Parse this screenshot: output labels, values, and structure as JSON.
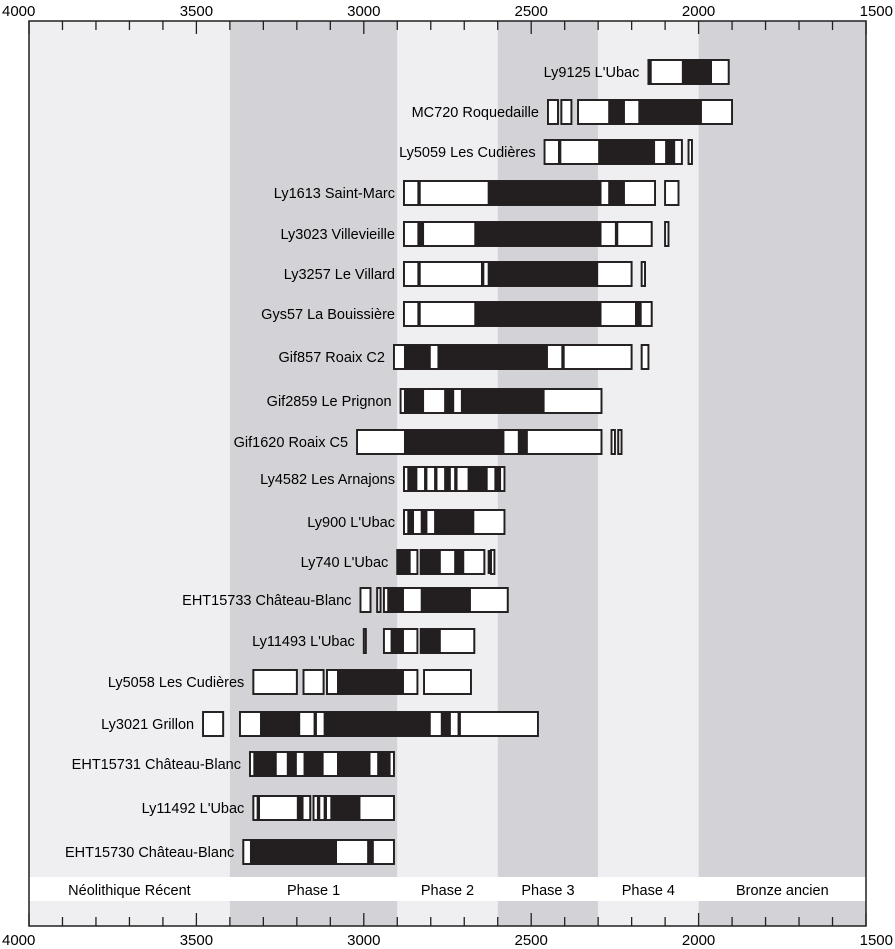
{
  "chart_data": {
    "type": "range-bar",
    "x_axis": {
      "range": [
        4000,
        1500
      ],
      "reversed": true,
      "tick_labels": [
        4000,
        3500,
        3000,
        2500,
        2000,
        1500
      ],
      "major_step": 500,
      "minor_step": 100,
      "position": "top and bottom"
    },
    "phases": [
      {
        "label": "Néolithique Récent",
        "start": 4000,
        "end": 3400,
        "color": "#efeff2"
      },
      {
        "label": "Phase 1",
        "start": 3400,
        "end": 2900,
        "color": "#d3d3d7"
      },
      {
        "label": "Phase 2",
        "start": 2900,
        "end": 2600,
        "color": "#efeff2"
      },
      {
        "label": "Phase 3",
        "start": 2600,
        "end": 2300,
        "color": "#d3d3d7"
      },
      {
        "label": "Phase 4",
        "start": 2300,
        "end": 2000,
        "color": "#efeff2"
      },
      {
        "label": "Bronze ancien",
        "start": 2000,
        "end": 1500,
        "color": "#d3d3d7"
      }
    ],
    "colors": {
      "background_light": "#efeff2",
      "background_dark": "#d3d3d7",
      "high_probability": "#231f20",
      "low_probability": "#ffffff",
      "outline": "#231f20"
    },
    "legend": "none",
    "samples": [
      {
        "label": "Ly9125 L'Ubac",
        "blocks": [
          [
            2150,
            1910
          ]
        ],
        "dark": [
          [
            2150,
            2140
          ],
          [
            2050,
            1960
          ]
        ]
      },
      {
        "label": "MC720 Roquedaille",
        "blocks": [
          [
            2450,
            2420
          ],
          [
            2410,
            2380
          ],
          [
            2360,
            1900
          ]
        ],
        "dark": [
          [
            2270,
            2220
          ],
          [
            2180,
            1990
          ]
        ]
      },
      {
        "label": "Ly5059 Les Cudières",
        "blocks": [
          [
            2460,
            2050
          ],
          [
            2030,
            2020
          ]
        ],
        "dark": [
          [
            2420,
            2410
          ],
          [
            2300,
            2130
          ],
          [
            2100,
            2070
          ]
        ]
      },
      {
        "label": "Ly1613 Saint-Marc",
        "blocks": [
          [
            2880,
            2130
          ],
          [
            2100,
            2060
          ]
        ],
        "dark": [
          [
            2840,
            2830
          ],
          [
            2630,
            2290
          ],
          [
            2270,
            2220
          ]
        ]
      },
      {
        "label": "Ly3023 Villevieille",
        "blocks": [
          [
            2880,
            2140
          ],
          [
            2100,
            2090
          ]
        ],
        "dark": [
          [
            2840,
            2820
          ],
          [
            2670,
            2290
          ],
          [
            2250,
            2240
          ]
        ]
      },
      {
        "label": "Ly3257 Le Villard",
        "blocks": [
          [
            2880,
            2200
          ],
          [
            2170,
            2160
          ]
        ],
        "dark": [
          [
            2840,
            2830
          ],
          [
            2650,
            2640
          ],
          [
            2630,
            2300
          ]
        ]
      },
      {
        "label": "Gys57 La Bouissière",
        "blocks": [
          [
            2880,
            2140
          ]
        ],
        "dark": [
          [
            2840,
            2830
          ],
          [
            2670,
            2290
          ],
          [
            2190,
            2170
          ]
        ]
      },
      {
        "label": "Gif857 Roaix C2",
        "blocks": [
          [
            2910,
            2200
          ],
          [
            2170,
            2150
          ]
        ],
        "dark": [
          [
            2880,
            2800
          ],
          [
            2780,
            2450
          ],
          [
            2410,
            2400
          ]
        ]
      },
      {
        "label": "Gif2859 Le Prignon",
        "blocks": [
          [
            2890,
            2290
          ]
        ],
        "dark": [
          [
            2880,
            2820
          ],
          [
            2760,
            2730
          ],
          [
            2710,
            2460
          ]
        ]
      },
      {
        "label": "Gif1620 Roaix C5",
        "blocks": [
          [
            3020,
            2290
          ],
          [
            2260,
            2250
          ],
          [
            2240,
            2230
          ]
        ],
        "dark": [
          [
            2880,
            2580
          ],
          [
            2540,
            2510
          ]
        ]
      },
      {
        "label": "Ly4582 Les Arnajons",
        "blocks": [
          [
            2880,
            2580
          ]
        ],
        "dark": [
          [
            2870,
            2840
          ],
          [
            2820,
            2810
          ],
          [
            2790,
            2780
          ],
          [
            2760,
            2740
          ],
          [
            2730,
            2720
          ],
          [
            2690,
            2630
          ],
          [
            2610,
            2590
          ]
        ]
      },
      {
        "label": "Ly900 L'Ubac",
        "blocks": [
          [
            2880,
            2580
          ]
        ],
        "dark": [
          [
            2870,
            2850
          ],
          [
            2830,
            2810
          ],
          [
            2790,
            2670
          ]
        ]
      },
      {
        "label": "Ly740 L'Ubac",
        "blocks": [
          [
            2900,
            2840
          ],
          [
            2830,
            2640
          ],
          [
            2620,
            2610
          ]
        ],
        "dark": [
          [
            2900,
            2860
          ],
          [
            2830,
            2770
          ],
          [
            2730,
            2700
          ],
          [
            2630,
            2620
          ]
        ]
      },
      {
        "label": "EHT15733 Château-Blanc",
        "blocks": [
          [
            3010,
            2980
          ],
          [
            2960,
            2950
          ],
          [
            2940,
            2570
          ]
        ],
        "dark": [
          [
            2930,
            2880
          ],
          [
            2830,
            2680
          ]
        ]
      },
      {
        "label": "Ly11493 L'Ubac",
        "blocks": [
          [
            3000,
            2995
          ],
          [
            2940,
            2840
          ],
          [
            2830,
            2670
          ]
        ],
        "dark": [
          [
            2920,
            2880
          ],
          [
            2830,
            2770
          ]
        ]
      },
      {
        "label": "Ly5058 Les Cudières",
        "blocks": [
          [
            3330,
            3200
          ],
          [
            3180,
            3120
          ],
          [
            3110,
            2840
          ],
          [
            2820,
            2680
          ]
        ],
        "dark": [
          [
            3080,
            2880
          ]
        ]
      },
      {
        "label": "Ly3021 Grillon",
        "blocks": [
          [
            3480,
            3420
          ],
          [
            3370,
            2480
          ]
        ],
        "dark": [
          [
            3310,
            3190
          ],
          [
            3150,
            3140
          ],
          [
            3120,
            2800
          ],
          [
            2770,
            2740
          ],
          [
            2720,
            2710
          ]
        ]
      },
      {
        "label": "EHT15731 Château-Blanc",
        "blocks": [
          [
            3340,
            2910
          ]
        ],
        "dark": [
          [
            3330,
            3260
          ],
          [
            3230,
            3200
          ],
          [
            3180,
            3120
          ],
          [
            3080,
            2980
          ],
          [
            2960,
            2920
          ]
        ]
      },
      {
        "label": "Ly11492 L'Ubac",
        "blocks": [
          [
            3330,
            3160
          ],
          [
            3150,
            2910
          ]
        ],
        "dark": [
          [
            3320,
            3310
          ],
          [
            3200,
            3180
          ],
          [
            3140,
            3130
          ],
          [
            3120,
            3110
          ],
          [
            3100,
            3010
          ]
        ]
      },
      {
        "label": "EHT15730 Château-Blanc",
        "blocks": [
          [
            3360,
            2910
          ]
        ],
        "dark": [
          [
            3340,
            3080
          ],
          [
            2990,
            2970
          ]
        ]
      }
    ]
  }
}
